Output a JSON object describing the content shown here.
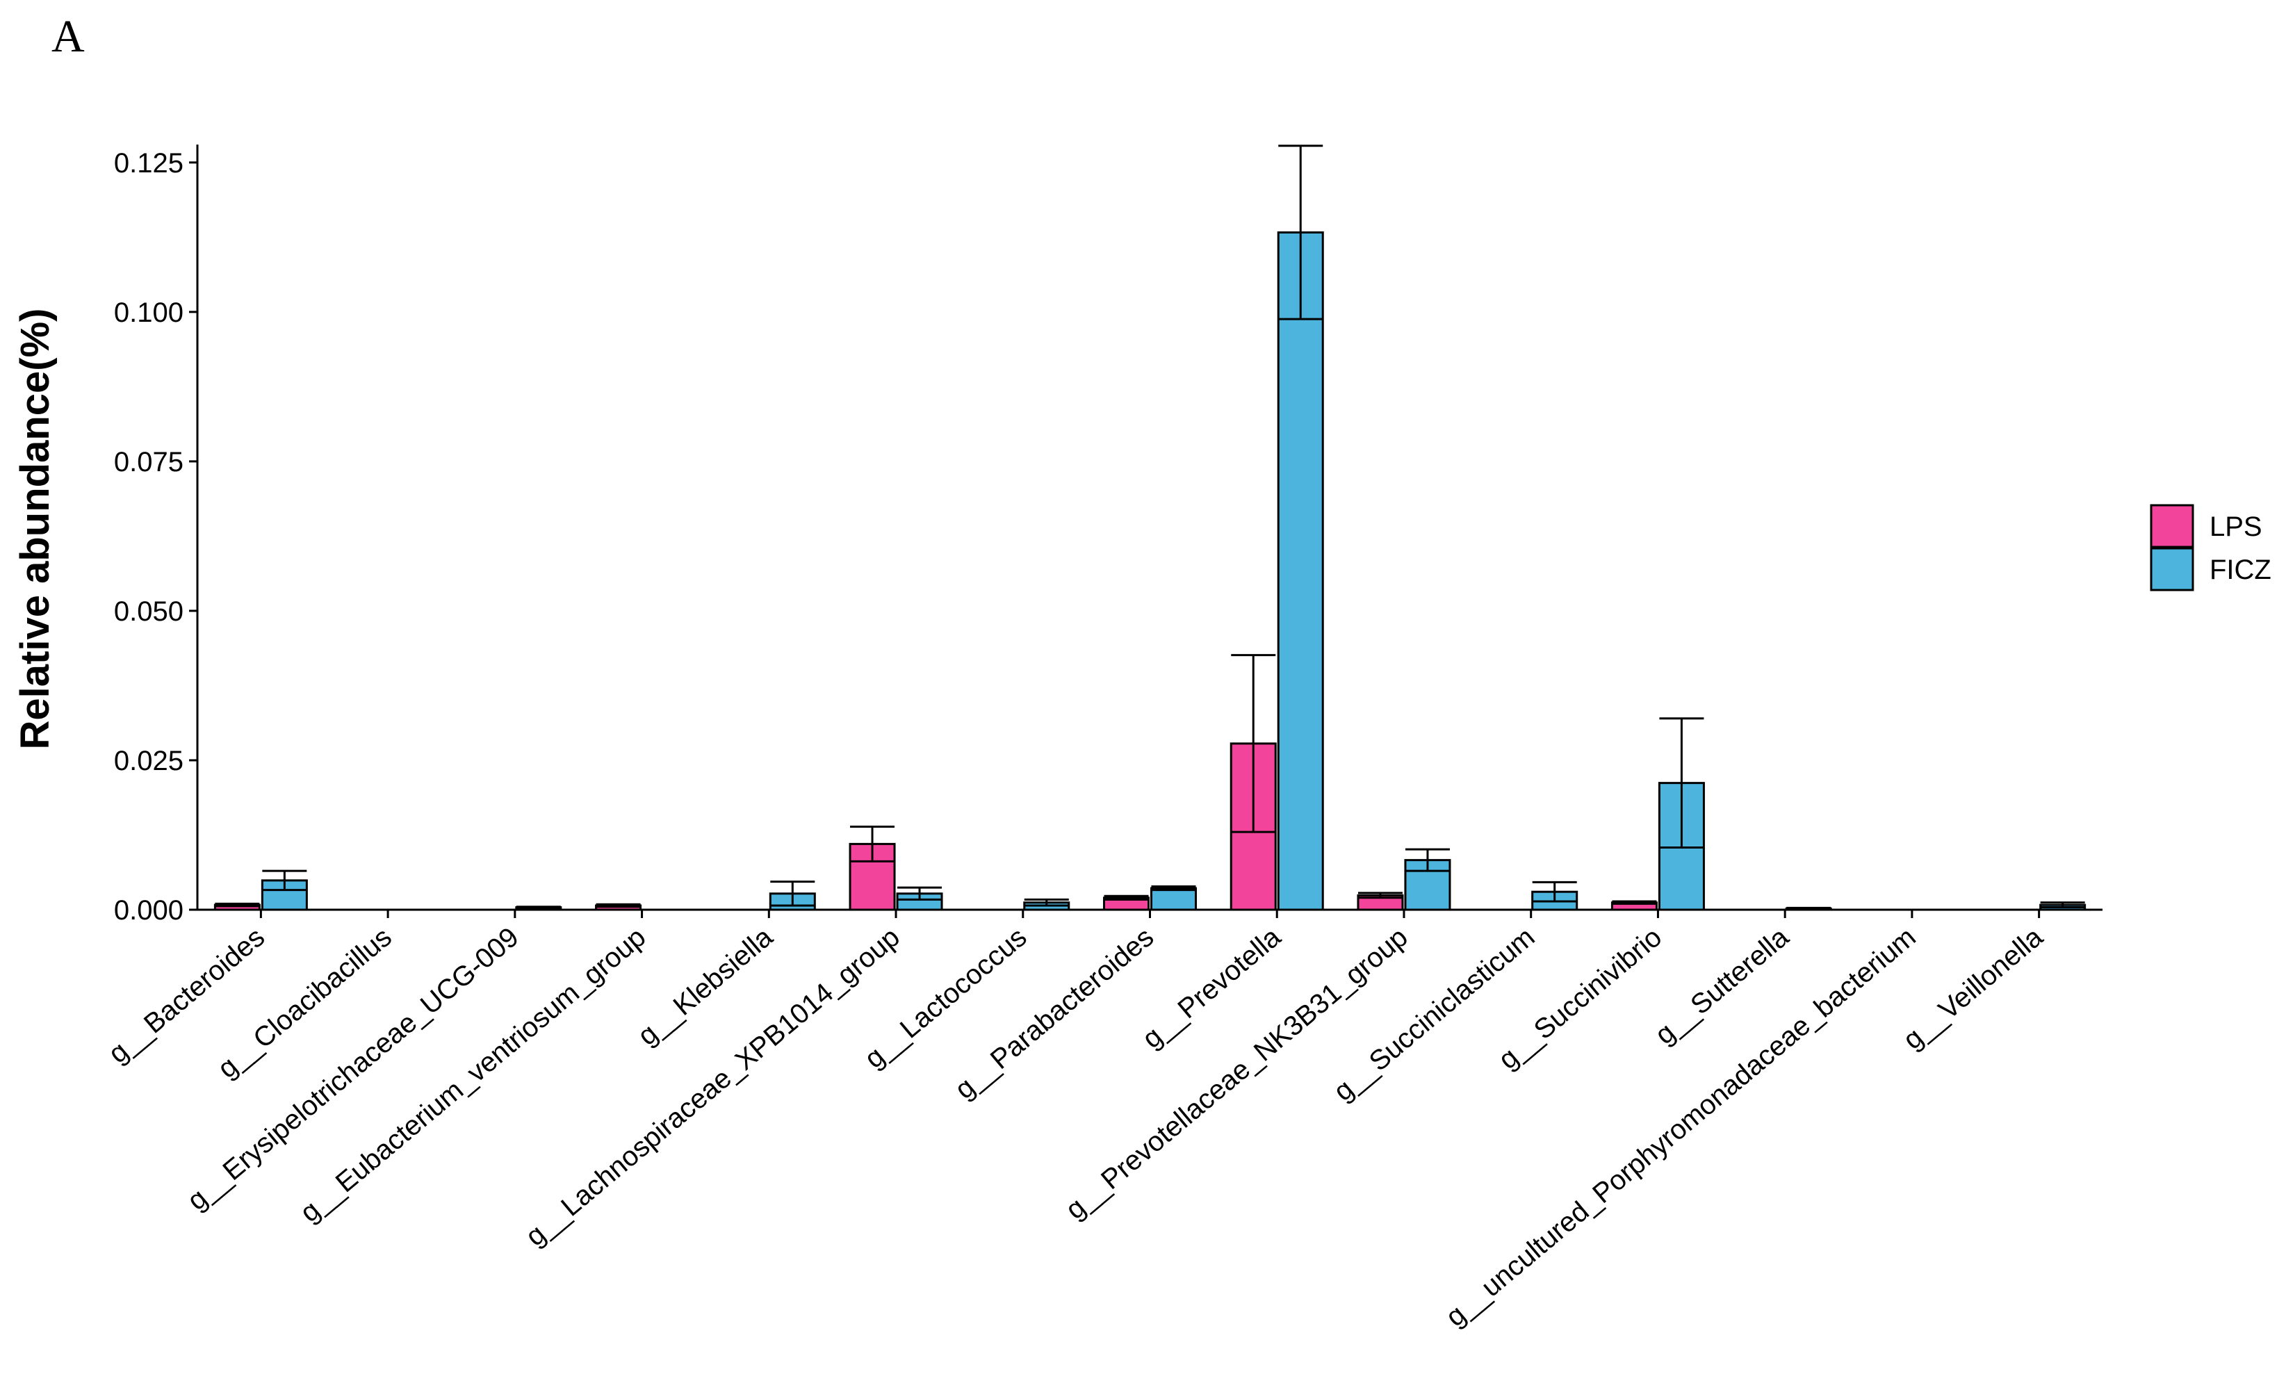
{
  "panel_label": "A",
  "chart_data": {
    "type": "bar",
    "title": "",
    "xlabel": "",
    "ylabel": "Relative abundance(%)",
    "ylim": [
      0,
      0.128
    ],
    "yticks": [
      0.0,
      0.025,
      0.05,
      0.075,
      0.1,
      0.125
    ],
    "ytick_labels": [
      "0.000",
      "0.025",
      "0.050",
      "0.075",
      "0.100",
      "0.125"
    ],
    "categories": [
      "g__Bacteroides",
      "g__Cloacibacillus",
      "g__Erysipelotrichaceae_UCG-009",
      "g__Eubacterium_ventriosum_group",
      "g__Klebsiella",
      "g__Lachnospiraceae_XPB1014_group",
      "g__Lactococcus",
      "g__Parabacteroides",
      "g__Prevotella",
      "g__Prevotellaceae_NK3B31_group",
      "g__Succiniclasticum",
      "g__Succinivibrio",
      "g__Sutterella",
      "g__uncultured_Porphyromonadaceae_bacterium",
      "g__Veillonella"
    ],
    "series": [
      {
        "name": "LPS",
        "color": "#f2449b",
        "values": [
          0.0008,
          0.0,
          0.0,
          0.0007,
          0.0,
          0.011,
          0.0,
          0.002,
          0.0278,
          0.0024,
          0.0,
          0.0012,
          0.0,
          0.0,
          0.0
        ],
        "errors": [
          0.0002,
          0.0,
          0.0,
          0.0002,
          0.0,
          0.0029,
          0.0,
          0.0003,
          0.0148,
          0.0004,
          0.0,
          0.0002,
          0.0,
          0.0,
          0.0
        ]
      },
      {
        "name": "FICZ",
        "color": "#4db4dd",
        "values": [
          0.0049,
          0.0,
          0.0004,
          0.0,
          0.0027,
          0.0027,
          0.0012,
          0.0036,
          0.1133,
          0.0083,
          0.003,
          0.0212,
          0.0002,
          0.0,
          0.0008
        ],
        "errors": [
          0.0016,
          0.0,
          0.0001,
          0.0,
          0.002,
          0.001,
          0.0005,
          0.0003,
          0.0145,
          0.0018,
          0.0016,
          0.0108,
          0.0001,
          0.0,
          0.0004
        ]
      }
    ],
    "legend_position": "right"
  }
}
